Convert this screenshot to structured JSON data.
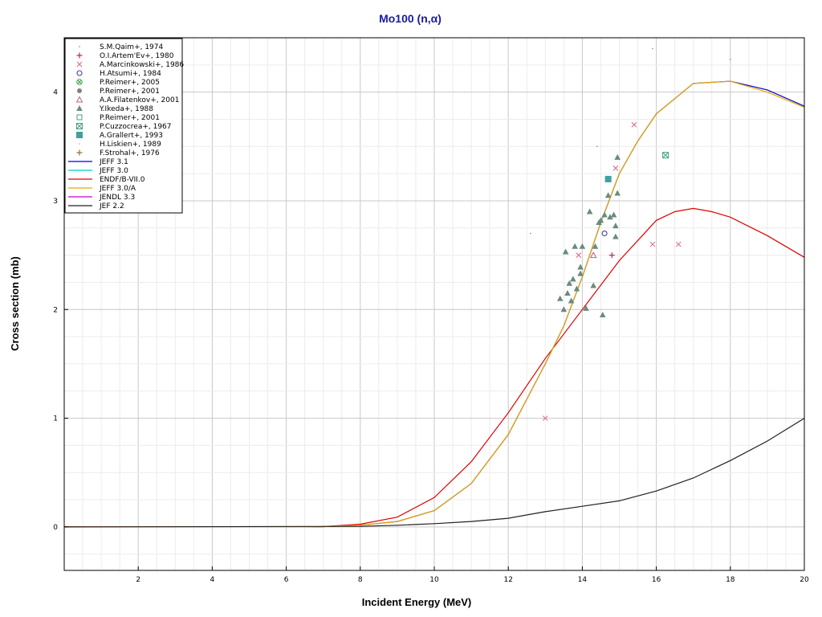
{
  "chart_data": {
    "type": "scatter",
    "title": "Mo100 (n,α)",
    "xlabel": "Incident Energy (MeV)",
    "ylabel": "Cross section (mb)",
    "xlim": [
      0,
      20
    ],
    "ylim": [
      -0.4,
      4.5
    ],
    "xticks": [
      "2",
      "4",
      "6",
      "8",
      "10",
      "12",
      "14",
      "16",
      "18",
      "20"
    ],
    "yticks": [
      "0",
      "1",
      "2",
      "3",
      "4"
    ],
    "xtick_values": [
      2,
      4,
      6,
      8,
      10,
      12,
      14,
      16,
      18,
      20
    ],
    "ytick_values": [
      0,
      1,
      2,
      3,
      4
    ],
    "grid": true,
    "legend_position": "top-left",
    "experimental": [
      {
        "name": "S.M.Qaim+, 1974",
        "marker": "dot",
        "color": "#9a9a9a",
        "points": [
          [
            12.5,
            2.0
          ],
          [
            12.6,
            2.7
          ],
          [
            14.4,
            3.5
          ],
          [
            15.9,
            4.4
          ],
          [
            18.0,
            4.3
          ]
        ]
      },
      {
        "name": "O.I.Artem'Ev+, 1980",
        "marker": "plus",
        "color": "#b03060",
        "points": [
          [
            14.8,
            2.5
          ]
        ]
      },
      {
        "name": "A.Marcinkowski+, 1986",
        "marker": "x",
        "color": "#e06080",
        "points": [
          [
            13.0,
            1.0
          ],
          [
            13.9,
            2.5
          ],
          [
            14.9,
            3.3
          ],
          [
            15.4,
            3.7
          ],
          [
            15.9,
            2.6
          ],
          [
            16.6,
            2.6
          ]
        ]
      },
      {
        "name": "H.Atsumi+, 1984",
        "marker": "circle",
        "color": "#4040a0",
        "points": [
          [
            14.6,
            2.7
          ]
        ]
      },
      {
        "name": "P.Reimer+, 2005",
        "marker": "circle-x",
        "color": "#40a040",
        "points": []
      },
      {
        "name": "P.Reimer+, 2001",
        "marker": "filled-circle",
        "color": "#808080",
        "points": []
      },
      {
        "name": "A.A.Filatenkov+, 2001",
        "marker": "triangle-open",
        "color": "#c06080",
        "points": [
          [
            14.3,
            2.5
          ]
        ]
      },
      {
        "name": "Y.Ikeda+, 1988",
        "marker": "triangle",
        "color": "#6a8a80",
        "points": [
          [
            13.4,
            2.1
          ],
          [
            13.5,
            2.0
          ],
          [
            13.55,
            2.53
          ],
          [
            13.6,
            2.15
          ],
          [
            13.65,
            2.24
          ],
          [
            13.7,
            2.08
          ],
          [
            13.75,
            2.28
          ],
          [
            13.8,
            2.58
          ],
          [
            13.85,
            2.19
          ],
          [
            13.95,
            2.33
          ],
          [
            13.95,
            2.39
          ],
          [
            14.0,
            2.58
          ],
          [
            14.1,
            2.01
          ],
          [
            14.2,
            2.9
          ],
          [
            14.3,
            2.22
          ],
          [
            14.35,
            2.58
          ],
          [
            14.45,
            2.8
          ],
          [
            14.5,
            2.82
          ],
          [
            14.55,
            1.95
          ],
          [
            14.6,
            2.87
          ],
          [
            14.7,
            3.05
          ],
          [
            14.75,
            2.85
          ],
          [
            14.85,
            2.87
          ],
          [
            14.9,
            2.67
          ],
          [
            14.9,
            2.77
          ],
          [
            14.95,
            3.07
          ],
          [
            14.95,
            3.4
          ]
        ]
      },
      {
        "name": "P.Reimer+, 2001",
        "marker": "square-open",
        "color": "#40a080",
        "points": []
      },
      {
        "name": "P.Cuzzocrea+, 1967",
        "marker": "square-x",
        "color": "#40a080",
        "points": [
          [
            16.25,
            3.42
          ]
        ]
      },
      {
        "name": "A.Grallert+, 1993",
        "marker": "square",
        "color": "#40a0a0",
        "points": [
          [
            14.7,
            3.2
          ]
        ]
      },
      {
        "name": "H.Liskien+, 1989",
        "marker": "dot",
        "color": "#c0c0a0",
        "points": []
      },
      {
        "name": "F.Strohal+, 1976",
        "marker": "plus",
        "color": "#907030",
        "points": []
      }
    ],
    "series": [
      {
        "name": "JEFF 3.1",
        "color": "#0000cc",
        "x": [
          0,
          6.5,
          7,
          8,
          9,
          10,
          11,
          12,
          13,
          13.5,
          14,
          14.5,
          15,
          15.5,
          16,
          17,
          18,
          19,
          20
        ],
        "y": [
          0,
          0,
          0.003,
          0.015,
          0.05,
          0.15,
          0.4,
          0.85,
          1.5,
          1.85,
          2.3,
          2.8,
          3.25,
          3.55,
          3.8,
          4.08,
          4.1,
          4.02,
          3.87
        ]
      },
      {
        "name": "JEFF 3.0",
        "color": "#00cccc",
        "x": [],
        "y": []
      },
      {
        "name": "ENDF/B-VII.0",
        "color": "#e00000",
        "x": [
          0,
          6.5,
          7,
          8,
          9,
          10,
          11,
          12,
          13,
          14,
          15,
          16,
          16.5,
          17,
          17.5,
          18,
          19,
          20
        ],
        "y": [
          0,
          0,
          0.003,
          0.025,
          0.09,
          0.27,
          0.6,
          1.05,
          1.55,
          2.0,
          2.45,
          2.82,
          2.9,
          2.93,
          2.9,
          2.85,
          2.68,
          2.48
        ]
      },
      {
        "name": "JEFF 3.0/A",
        "color": "#e8a800",
        "x": [
          0,
          6.5,
          7,
          8,
          9,
          10,
          11,
          12,
          13,
          13.5,
          14,
          14.5,
          15,
          15.5,
          16,
          17,
          18,
          19,
          20
        ],
        "y": [
          0,
          0,
          0.003,
          0.015,
          0.05,
          0.15,
          0.4,
          0.85,
          1.5,
          1.85,
          2.3,
          2.8,
          3.25,
          3.55,
          3.8,
          4.08,
          4.1,
          4.0,
          3.86
        ]
      },
      {
        "name": "JENDL 3.3",
        "color": "#cc00cc",
        "x": [],
        "y": []
      },
      {
        "name": "JEF 2.2",
        "color": "#202020",
        "x": [
          0,
          8,
          9,
          10,
          11,
          12,
          13,
          14,
          15,
          16,
          17,
          18,
          19,
          20
        ],
        "y": [
          0,
          0.005,
          0.015,
          0.03,
          0.05,
          0.08,
          0.14,
          0.19,
          0.24,
          0.33,
          0.45,
          0.61,
          0.79,
          1.0
        ]
      }
    ]
  }
}
